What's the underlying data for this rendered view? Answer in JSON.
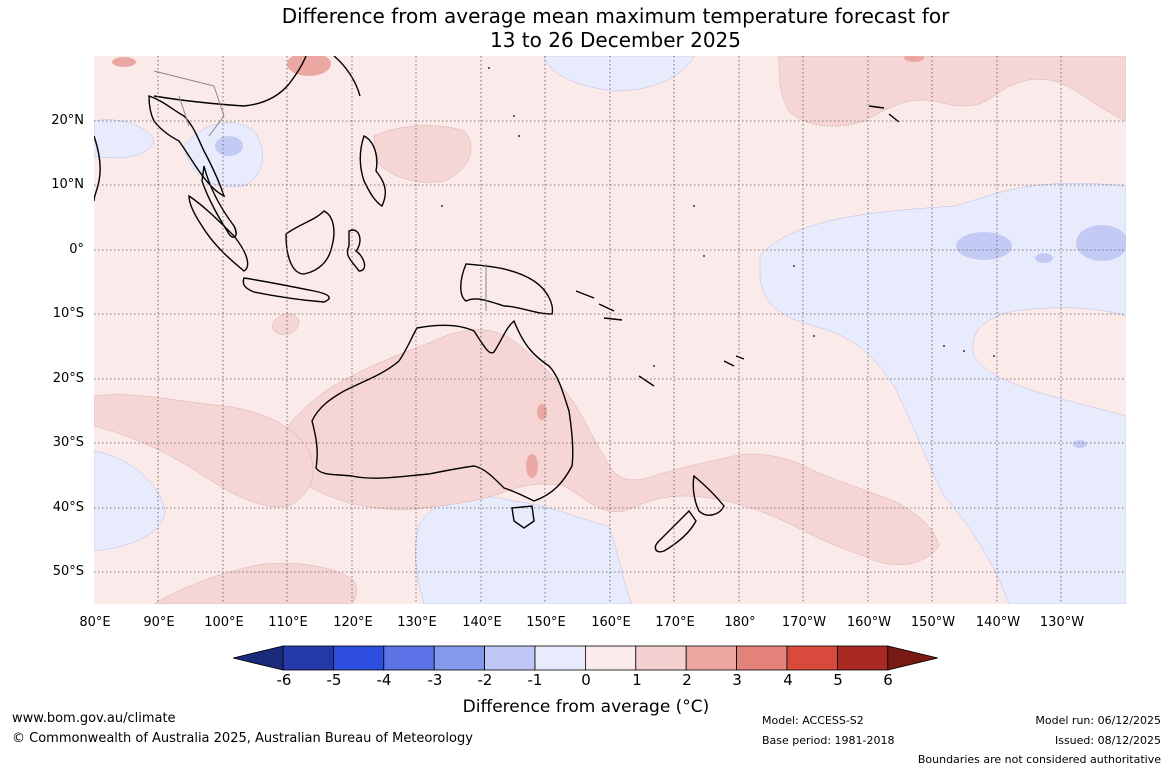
{
  "title_line1": "Difference from average mean maximum temperature forecast for",
  "title_line2": "13 to 26 December 2025",
  "lat_labels": [
    "20°N",
    "10°N",
    "0°",
    "10°S",
    "20°S",
    "30°S",
    "40°S",
    "50°S"
  ],
  "lon_labels": [
    "80°E",
    "90°E",
    "100°E",
    "110°E",
    "120°E",
    "130°E",
    "140°E",
    "150°E",
    "160°E",
    "170°E",
    "180°",
    "170°W",
    "160°W",
    "150°W",
    "140°W",
    "130°W"
  ],
  "colorbar": {
    "ticks": [
      "-6",
      "-5",
      "-4",
      "-3",
      "-2",
      "-1",
      "0",
      "1",
      "2",
      "3",
      "4",
      "5",
      "6"
    ],
    "colors": [
      "#1b2a7a",
      "#2438a8",
      "#2e4fdd",
      "#5b73e6",
      "#8499ec",
      "#bfc6f5",
      "#e8ebfb",
      "#fbeaea",
      "#f5d0d0",
      "#eba8a3",
      "#e3827b",
      "#d84a3c",
      "#a82a22",
      "#7a1a14"
    ],
    "label": "Difference from average (°C)"
  },
  "map_fills": {
    "near_zero_warm": "#fbeaea",
    "warm_1_2": "#f5d6d4",
    "warm_2_3": "#eba8a3",
    "near_zero_cool": "#e8ebfb",
    "cool_1_2": "#c3cbf4",
    "coast": "#000000",
    "grid": "#555555"
  },
  "footer": {
    "website": "www.bom.gov.au/climate",
    "copyright": "© Commonwealth of Australia 2025, Australian Bureau of Meteorology",
    "model": "Model: ACCESS-S2",
    "base_period": "Base period: 1981-2018",
    "model_run": "Model run: 06/12/2025",
    "issued": "Issued: 08/12/2025",
    "disclaimer": "Boundaries are not considered authoritative"
  }
}
